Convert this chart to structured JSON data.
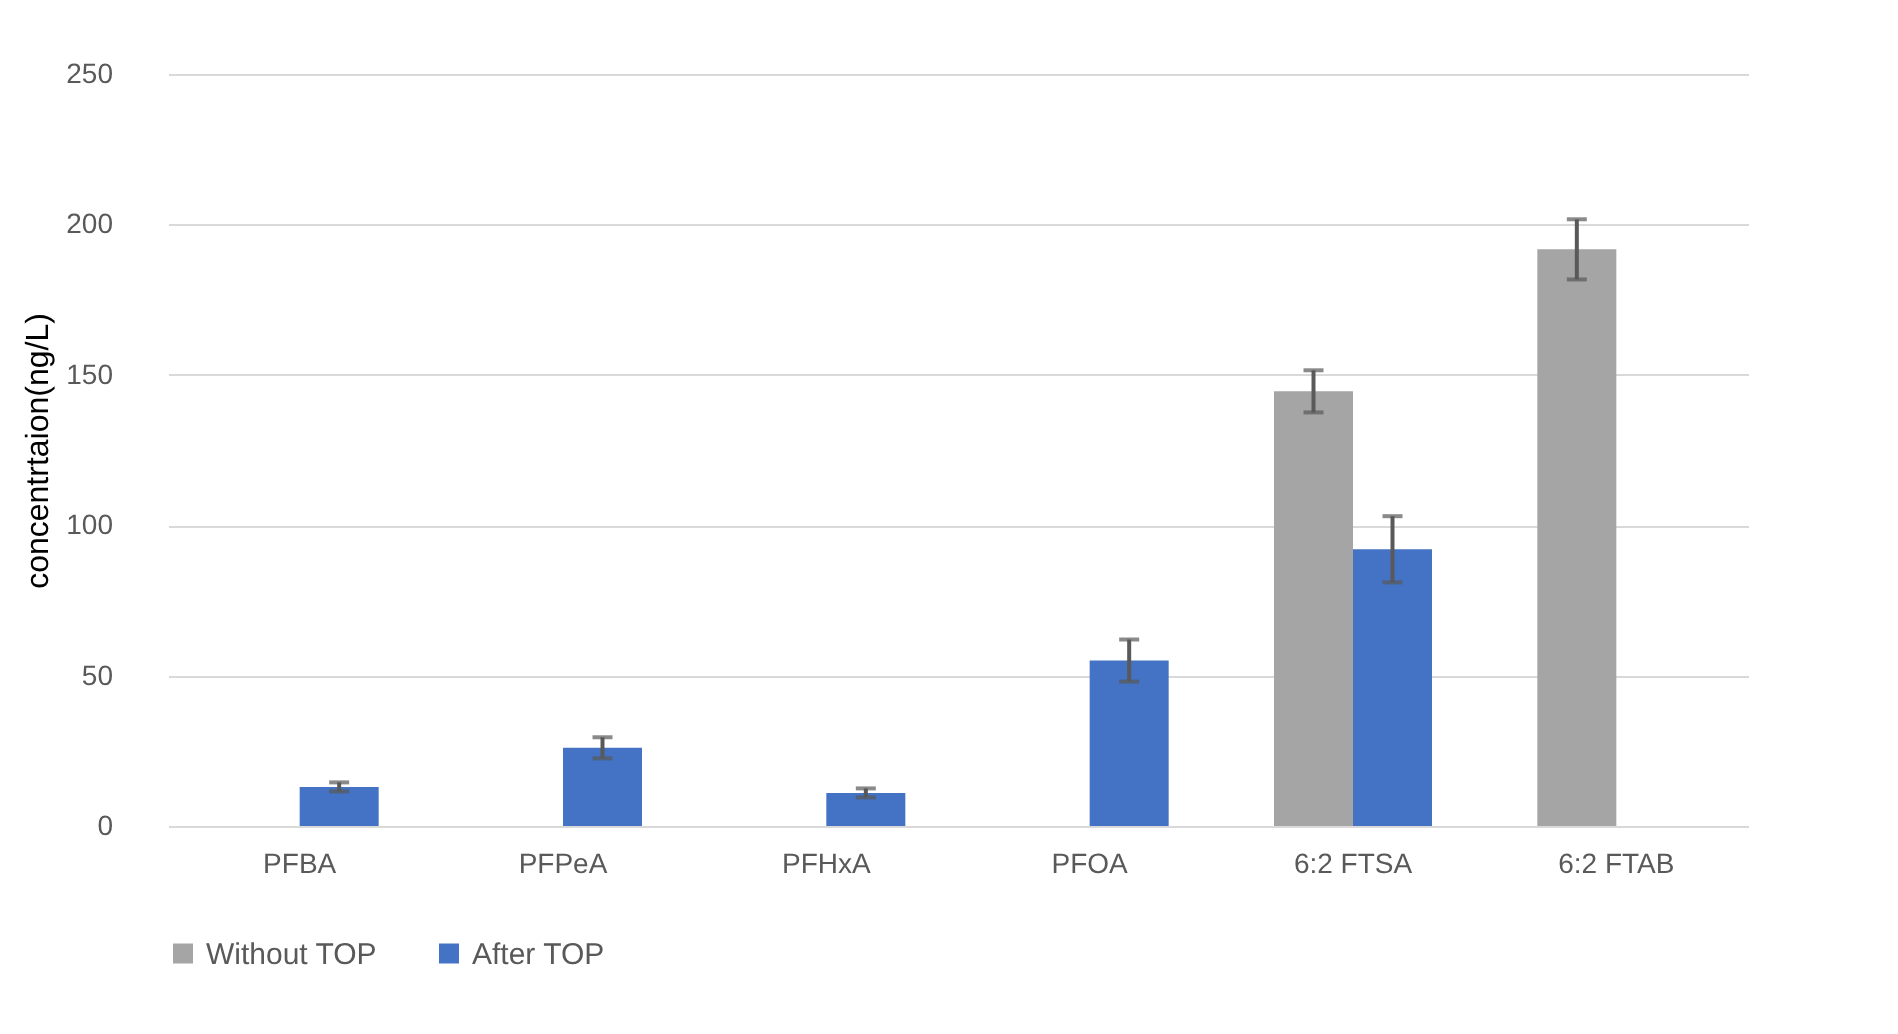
{
  "chart_data": {
    "type": "bar",
    "ylabel": "concentrtaion(ng/L)",
    "categories": [
      "PFBA",
      "PFPeA",
      "PFHxA",
      "PFOA",
      "6:2 FTSA",
      "6:2 FTAB"
    ],
    "series": [
      {
        "name": "Without TOP",
        "color": "#a5a5a5",
        "values": [
          null,
          null,
          null,
          null,
          144.5,
          191.7
        ],
        "errors": [
          null,
          null,
          null,
          null,
          7,
          10
        ]
      },
      {
        "name": "After TOP",
        "color": "#4472c4",
        "values": [
          13,
          26,
          11,
          55,
          92,
          null
        ],
        "errors": [
          1.5,
          3.5,
          1.5,
          7,
          11,
          null
        ]
      }
    ],
    "ylim": [
      0,
      250
    ],
    "yticks": [
      0,
      50,
      100,
      150,
      200,
      250
    ],
    "grid": "y",
    "legend": "bottom"
  }
}
